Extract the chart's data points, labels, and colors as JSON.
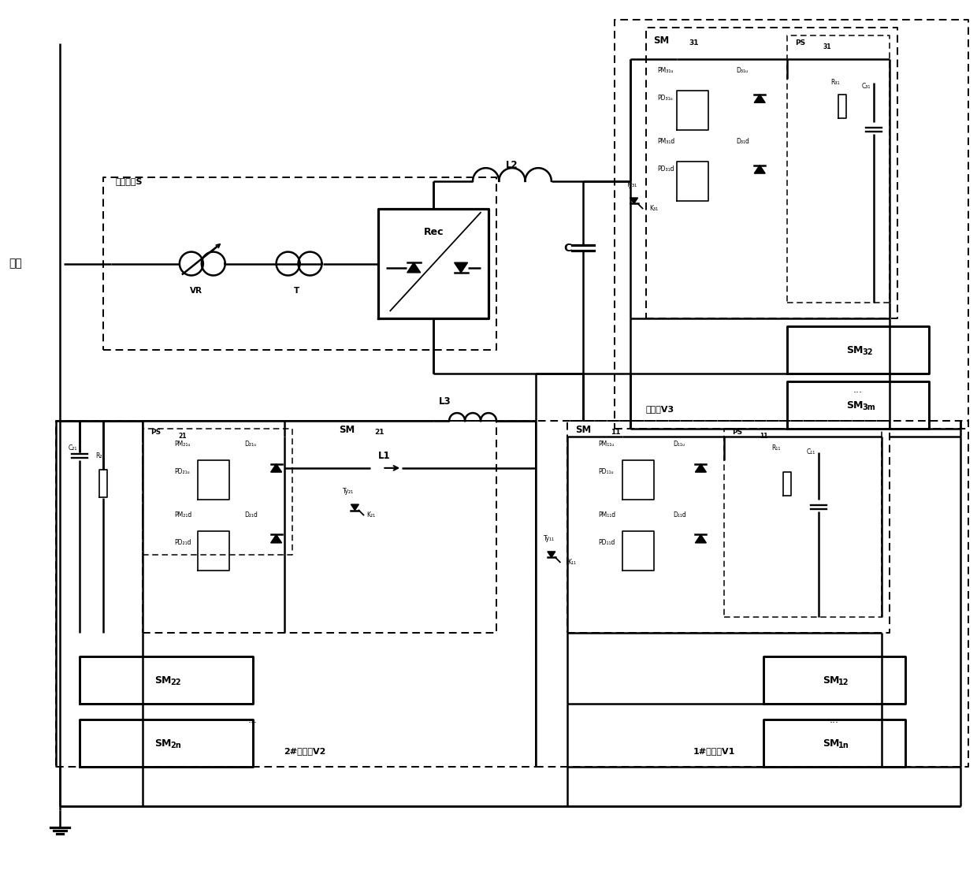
{
  "bg": "#ffffff",
  "lc": "#000000",
  "lw": 1.8,
  "fig_w": 12.4,
  "fig_h": 11.04,
  "dpi": 100,
  "xlim": [
    0,
    124
  ],
  "ylim": [
    0,
    110.4
  ],
  "labels": {
    "grid": "电网",
    "test_source": "试验电源S",
    "VR": "VR",
    "T": "T",
    "Rec": "Rec",
    "L1": "L1",
    "L2": "L2",
    "L3": "L3",
    "C": "C",
    "aux_valve": "辅助阀V3",
    "valve1": "1#试品阀V1",
    "valve2": "2#试品阀V2",
    "SM11": "SM",
    "SM11s": "11",
    "SM12": "SM",
    "SM12s": "12",
    "SM1n": "SM",
    "SM1ns": "1n",
    "SM21": "SM",
    "SM21s": "21",
    "SM22": "SM",
    "SM22s": "22",
    "SM2n": "SM",
    "SM2ns": "2n",
    "SM31": "SM",
    "SM31s": "31",
    "SM32": "SM",
    "SM32s": "32",
    "SM3n": "SM",
    "SM3ns": "3m"
  }
}
